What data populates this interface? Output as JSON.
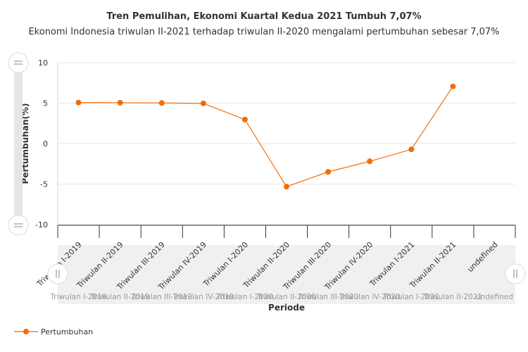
{
  "chart_data": {
    "type": "line",
    "title": "Tren Pemulihan, Ekonomi Kuartal Kedua 2021 Tumbuh 7,07%",
    "subtitle": "Ekonomi Indonesia triwulan II-2021 terhadap triwulan II-2020 mengalami pertumbuhan sebesar 7,07%",
    "xlabel": "Periode",
    "ylabel": "Pertumbuhan(%)",
    "categories": [
      "Triwulan I-2019",
      "Triwulan II-2019",
      "Triwulan III-2019",
      "Triwulan IV-2019",
      "Triwulan I-2020",
      "Triwulan II-2020",
      "Triwulan III-2020",
      "Triwulan IV-2020",
      "Triwulan I-2021",
      "Triwulan II-2021",
      "undefined"
    ],
    "series": [
      {
        "name": "Pertumbuhan",
        "color": "#f26d0a",
        "values": [
          5.07,
          5.05,
          5.02,
          4.97,
          2.97,
          -5.32,
          -3.49,
          -2.19,
          -0.71,
          7.07,
          null
        ]
      }
    ],
    "ylim": [
      -10,
      10
    ],
    "yticks": [
      -10,
      -5,
      0,
      5,
      10
    ],
    "grid": true,
    "legend": "bottom-left"
  }
}
